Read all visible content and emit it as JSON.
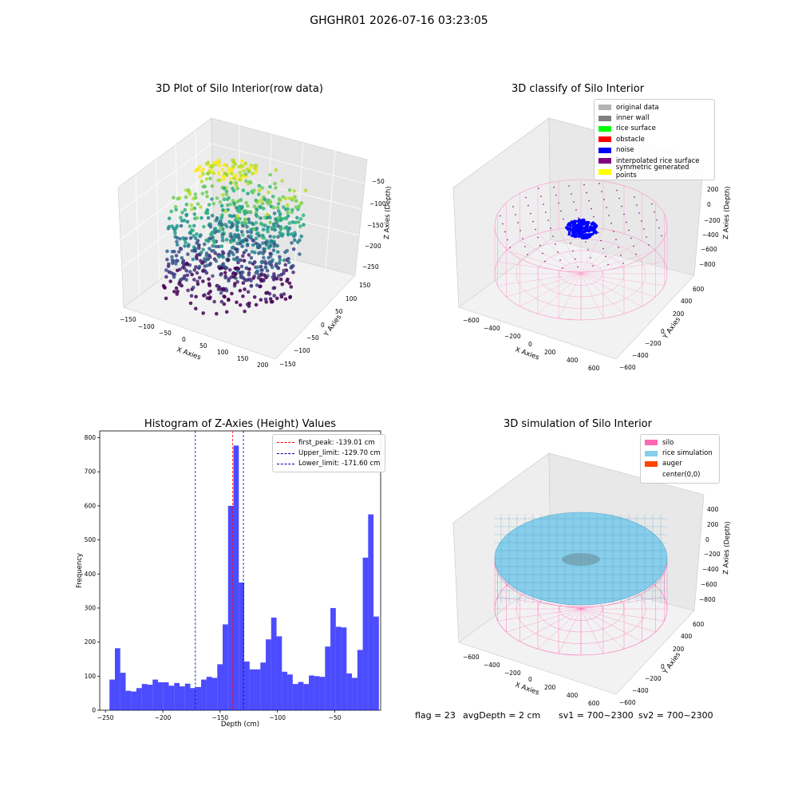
{
  "suptitle": "GHGHR01 2026-07-16 03:23:05",
  "panels": {
    "raw": {
      "title": "3D Plot of Silo Interior(row data)",
      "xlabel": "X Axies",
      "ylabel": "Y Axies",
      "zlabel": "Z Axies (Depth)",
      "xticks": [
        "−150",
        "−100",
        "−50",
        "0",
        "50",
        "100",
        "150",
        "200"
      ],
      "yticks": [
        "150",
        "100",
        "50",
        "0",
        "−50",
        "−100",
        "−150"
      ],
      "zticks": [
        "−50",
        "−100",
        "−150",
        "−200",
        "−250"
      ]
    },
    "classify": {
      "title": "3D classify of Silo Interior",
      "xlabel": "X Axies",
      "ylabel": "Y Axies",
      "zlabel": "Z Axies (Depth)",
      "xticks": [
        "−600",
        "−400",
        "−200",
        "0",
        "200",
        "400",
        "600"
      ],
      "yticks": [
        "600",
        "400",
        "200",
        "0",
        "−200",
        "−400",
        "−600"
      ],
      "zticks": [
        "200",
        "0",
        "−200",
        "−400",
        "−600",
        "−800"
      ],
      "legend": [
        {
          "label": "original data",
          "color": "#b3b3b3"
        },
        {
          "label": "inner wall",
          "color": "#808080"
        },
        {
          "label": "rice surface",
          "color": "#00ff00"
        },
        {
          "label": "obstacle",
          "color": "#ff0000"
        },
        {
          "label": "noise",
          "color": "#0000ff"
        },
        {
          "label": "interpolated rice surface",
          "color": "#800080"
        },
        {
          "label": "symmetric generated points",
          "color": "#ffff00"
        }
      ]
    },
    "simulation": {
      "title": "3D simulation of Silo Interior",
      "xlabel": "X Axies",
      "ylabel": "Y Axies",
      "zlabel": "Z Axies (Depth)",
      "xticks": [
        "−600",
        "−400",
        "−200",
        "0",
        "200",
        "400",
        "600"
      ],
      "yticks": [
        "600",
        "400",
        "200",
        "0",
        "−200",
        "−400",
        "−600"
      ],
      "zticks": [
        "400",
        "200",
        "0",
        "−200",
        "−400",
        "−600",
        "−800"
      ],
      "legend": [
        {
          "label": "silo",
          "color": "#ff69b4"
        },
        {
          "label": "rice simulation",
          "color": "#87ceeb"
        },
        {
          "label": "auger",
          "color": "#ff4500"
        },
        {
          "label": "center(0,0)",
          "color": "#ffffff"
        }
      ]
    }
  },
  "footer": {
    "flag": "flag = 23",
    "avgDepth": "avgDepth = 2 cm",
    "sv1": "sv1 = 700~2300",
    "sv2": "sv2 = 700~2300"
  },
  "chart_data": {
    "type": "bar",
    "title": "Histogram of Z-Axies (Height) Values",
    "xlabel": "Depth (cm)",
    "ylabel": "Frequency",
    "xlim": [
      -255,
      -10
    ],
    "ylim": [
      0,
      820
    ],
    "xticks": [
      -250,
      -200,
      -150,
      -100,
      -50
    ],
    "yticks": [
      0,
      100,
      200,
      300,
      400,
      500,
      600,
      700,
      800
    ],
    "bin_start": -246.5,
    "bin_width": 4.7,
    "values": [
      90,
      182,
      110,
      57,
      55,
      65,
      77,
      75,
      90,
      82,
      82,
      72,
      80,
      70,
      78,
      65,
      68,
      90,
      98,
      95,
      135,
      252,
      600,
      777,
      375,
      143,
      120,
      120,
      140,
      208,
      272,
      217,
      113,
      105,
      77,
      83,
      77,
      102,
      100,
      98,
      187,
      300,
      245,
      243,
      108,
      95,
      177,
      448,
      575,
      275
    ],
    "bar_color": "#0000ff",
    "vlines": [
      {
        "label": "first_peak: -139.01 cm",
        "value": -139.01,
        "color": "#ff0000"
      },
      {
        "label": "Upper_limit: -129.70 cm",
        "value": -129.7,
        "color": "#0000aa"
      },
      {
        "label": "Lower_limit: -171.60 cm",
        "value": -171.6,
        "color": "#0000aa"
      }
    ]
  }
}
